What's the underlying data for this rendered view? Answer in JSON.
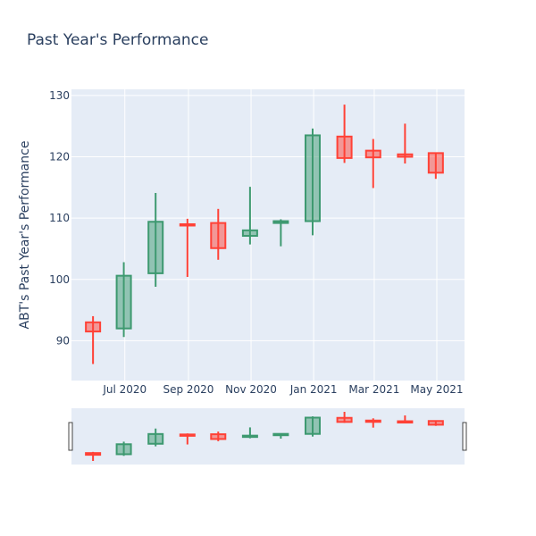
{
  "chart_data": {
    "type": "candlestick",
    "title": "Past Year's Performance",
    "ylabel": "ABT's Past Year's Performance",
    "xlabel": "",
    "ylim": [
      83.5,
      131
    ],
    "yticks": [
      90,
      100,
      110,
      120,
      130
    ],
    "x_range": [
      "2020-05-10",
      "2021-05-28"
    ],
    "xticks": [
      {
        "date": "2020-07-01",
        "label": "Jul 2020"
      },
      {
        "date": "2020-09-01",
        "label": "Sep 2020"
      },
      {
        "date": "2020-11-01",
        "label": "Nov 2020"
      },
      {
        "date": "2021-01-01",
        "label": "Jan 2021"
      },
      {
        "date": "2021-03-01",
        "label": "Mar 2021"
      },
      {
        "date": "2021-05-01",
        "label": "May 2021"
      }
    ],
    "grid": true,
    "rangeslider": true,
    "increasing_color": "#3d9970",
    "decreasing_color": "#ff4136",
    "candles": [
      {
        "date": "2020-05-31",
        "open": 93.0,
        "high": 94.0,
        "low": 86.2,
        "close": 91.5
      },
      {
        "date": "2020-06-30",
        "open": 92.0,
        "high": 102.8,
        "low": 90.6,
        "close": 100.6
      },
      {
        "date": "2020-07-31",
        "open": 101.0,
        "high": 114.1,
        "low": 98.8,
        "close": 109.4
      },
      {
        "date": "2020-08-31",
        "open": 109.0,
        "high": 109.9,
        "low": 100.4,
        "close": 108.8
      },
      {
        "date": "2020-09-30",
        "open": 109.2,
        "high": 111.5,
        "low": 103.2,
        "close": 105.1
      },
      {
        "date": "2020-10-31",
        "open": 107.1,
        "high": 115.1,
        "low": 105.7,
        "close": 108.0
      },
      {
        "date": "2020-11-30",
        "open": 109.2,
        "high": 109.8,
        "low": 105.4,
        "close": 109.5
      },
      {
        "date": "2020-12-31",
        "open": 109.5,
        "high": 124.6,
        "low": 107.2,
        "close": 123.5
      },
      {
        "date": "2021-01-31",
        "open": 123.3,
        "high": 128.5,
        "low": 119.0,
        "close": 119.8
      },
      {
        "date": "2021-02-28",
        "open": 121.0,
        "high": 122.9,
        "low": 114.9,
        "close": 119.9
      },
      {
        "date": "2021-03-31",
        "open": 120.4,
        "high": 125.4,
        "low": 118.9,
        "close": 120.0
      },
      {
        "date": "2021-04-30",
        "open": 120.6,
        "high": 120.6,
        "low": 116.4,
        "close": 117.4
      }
    ]
  }
}
